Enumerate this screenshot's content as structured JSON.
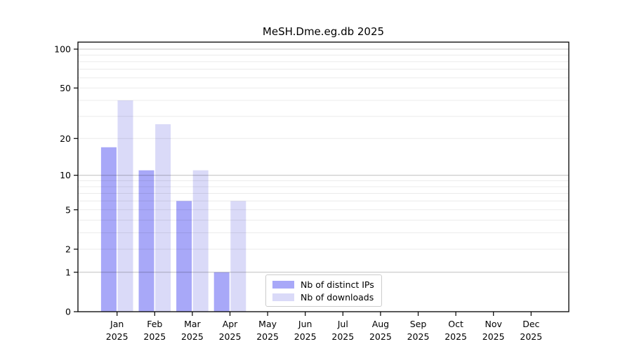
{
  "chart_data": {
    "type": "bar",
    "title": "MeSH.Dme.eg.db 2025",
    "year": "2025",
    "categories": [
      "Jan",
      "Feb",
      "Mar",
      "Apr",
      "May",
      "Jun",
      "Jul",
      "Aug",
      "Sep",
      "Oct",
      "Nov",
      "Dec"
    ],
    "series": [
      {
        "name": "Nb of distinct IPs",
        "color": "#a8a8f8",
        "values": [
          17,
          11,
          6,
          1,
          0,
          0,
          0,
          0,
          0,
          0,
          0,
          0
        ]
      },
      {
        "name": "Nb of downloads",
        "color": "#dadaf8",
        "values": [
          40,
          26,
          11,
          6,
          0,
          0,
          0,
          0,
          0,
          0,
          0,
          0
        ]
      }
    ],
    "yscale": "log10(1+x)",
    "ylim": [
      0,
      113
    ],
    "yticks": [
      0,
      1,
      2,
      5,
      10,
      20,
      50,
      100
    ],
    "grid": {
      "on": true,
      "major": [
        1,
        10,
        100
      ],
      "minor": [
        2,
        3,
        4,
        5,
        6,
        7,
        8,
        9,
        20,
        30,
        40,
        50,
        60,
        70,
        80,
        90
      ]
    },
    "legend_position": "bottom-center",
    "axis_color": "#000000",
    "grid_major_color": "#c7c7c7",
    "grid_minor_color": "#eaeaea"
  }
}
